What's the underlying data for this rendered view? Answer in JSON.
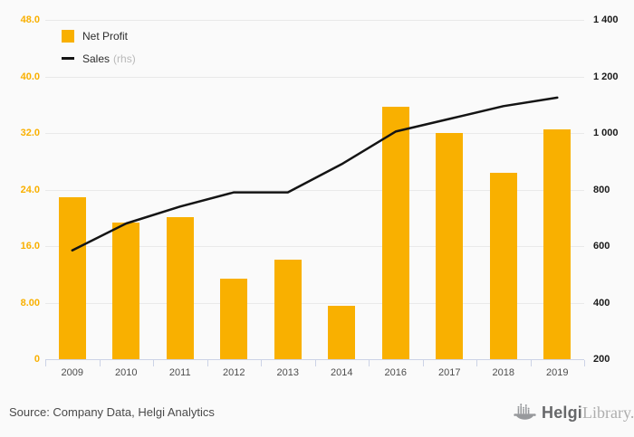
{
  "legend": {
    "net_profit": "Net Profit",
    "sales": "Sales",
    "rhs_suffix": "(rhs)"
  },
  "footer": {
    "source": "Source: Company Data, Helgi Analytics",
    "logo_bold": "Helgi",
    "logo_light": "Library."
  },
  "colors": {
    "background": "#fafafa",
    "bar": "#f9b000",
    "line": "#141414",
    "left_axis_label": "#f9b000",
    "right_axis_label": "#1a1a1a",
    "grid": "#e9e9e9",
    "axis": "#ccd3e6"
  },
  "chart_data": {
    "type": "bar",
    "title": "",
    "categories": [
      "2009",
      "2010",
      "2011",
      "2012",
      "2013",
      "2014",
      "2016",
      "2017",
      "2018",
      "2019"
    ],
    "series": [
      {
        "name": "Net Profit",
        "type": "bar",
        "axis": "left",
        "values": [
          22.9,
          19.3,
          20.1,
          11.4,
          14.1,
          7.6,
          35.7,
          32.0,
          26.4,
          32.5
        ]
      },
      {
        "name": "Sales",
        "type": "line",
        "axis": "right",
        "values": [
          585,
          680,
          740,
          790,
          790,
          890,
          1005,
          1050,
          1095,
          1125
        ]
      }
    ],
    "left_axis": {
      "min": 0,
      "max": 48,
      "ticks": [
        "48.0",
        "40.0",
        "32.0",
        "24.0",
        "16.0",
        "8.00",
        "0"
      ]
    },
    "right_axis": {
      "min": 200,
      "max": 1400,
      "ticks": [
        "1 400",
        "1 200",
        "1 000",
        "800",
        "600",
        "400",
        "200"
      ]
    },
    "grid": true,
    "legend_position": "top-left"
  }
}
